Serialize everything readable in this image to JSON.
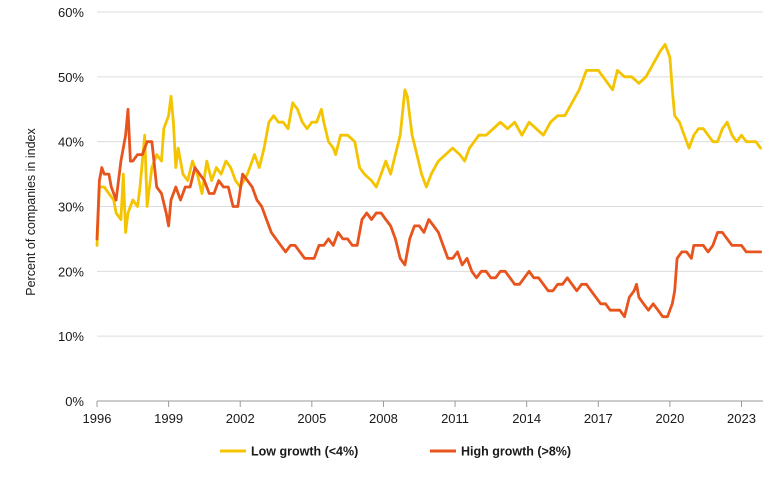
{
  "chart_data": {
    "type": "line",
    "title": "",
    "xlabel": "",
    "ylabel": "Percent of companies in index",
    "xlim": [
      1996,
      2023.9
    ],
    "ylim": [
      0,
      60
    ],
    "x_ticks": [
      1996,
      1999,
      2002,
      2005,
      2008,
      2011,
      2014,
      2017,
      2020,
      2023
    ],
    "y_ticks": [
      0,
      10,
      20,
      30,
      40,
      50,
      60
    ],
    "y_tick_labels": [
      "0%",
      "10%",
      "20%",
      "30%",
      "40%",
      "50%",
      "60%"
    ],
    "grid": "horizontal",
    "legend": "bottom",
    "series": [
      {
        "name": "Low growth (<4%)",
        "color": "#f5c400",
        "points": [
          [
            1996.0,
            24
          ],
          [
            1996.1,
            33
          ],
          [
            1996.3,
            33
          ],
          [
            1996.5,
            32
          ],
          [
            1996.7,
            31
          ],
          [
            1996.8,
            29
          ],
          [
            1997.0,
            28
          ],
          [
            1997.1,
            35
          ],
          [
            1997.2,
            26
          ],
          [
            1997.3,
            29
          ],
          [
            1997.5,
            31
          ],
          [
            1997.7,
            30
          ],
          [
            1997.8,
            33
          ],
          [
            1998.0,
            41
          ],
          [
            1998.1,
            30
          ],
          [
            1998.3,
            36
          ],
          [
            1998.5,
            38
          ],
          [
            1998.7,
            37
          ],
          [
            1998.8,
            42
          ],
          [
            1999.0,
            44
          ],
          [
            1999.1,
            47
          ],
          [
            1999.2,
            43
          ],
          [
            1999.3,
            36
          ],
          [
            1999.4,
            39
          ],
          [
            1999.6,
            35
          ],
          [
            1999.8,
            34
          ],
          [
            2000.0,
            37
          ],
          [
            2000.2,
            35
          ],
          [
            2000.4,
            32
          ],
          [
            2000.6,
            37
          ],
          [
            2000.8,
            34
          ],
          [
            2001.0,
            36
          ],
          [
            2001.2,
            35
          ],
          [
            2001.4,
            37
          ],
          [
            2001.6,
            36
          ],
          [
            2001.8,
            34
          ],
          [
            2002.0,
            33
          ],
          [
            2002.3,
            35
          ],
          [
            2002.6,
            38
          ],
          [
            2002.8,
            36
          ],
          [
            2003.0,
            39
          ],
          [
            2003.2,
            43
          ],
          [
            2003.4,
            44
          ],
          [
            2003.6,
            43
          ],
          [
            2003.8,
            43
          ],
          [
            2004.0,
            42
          ],
          [
            2004.2,
            46
          ],
          [
            2004.4,
            45
          ],
          [
            2004.6,
            43
          ],
          [
            2004.8,
            42
          ],
          [
            2005.0,
            43
          ],
          [
            2005.2,
            43
          ],
          [
            2005.4,
            45
          ],
          [
            2005.5,
            43
          ],
          [
            2005.7,
            40
          ],
          [
            2005.9,
            39
          ],
          [
            2006.0,
            38
          ],
          [
            2006.2,
            41
          ],
          [
            2006.5,
            41
          ],
          [
            2006.8,
            40
          ],
          [
            2007.0,
            36
          ],
          [
            2007.2,
            35
          ],
          [
            2007.5,
            34
          ],
          [
            2007.7,
            33
          ],
          [
            2007.9,
            35
          ],
          [
            2008.1,
            37
          ],
          [
            2008.3,
            35
          ],
          [
            2008.5,
            38
          ],
          [
            2008.7,
            41
          ],
          [
            2008.9,
            48
          ],
          [
            2009.0,
            47
          ],
          [
            2009.2,
            41
          ],
          [
            2009.4,
            38
          ],
          [
            2009.6,
            35
          ],
          [
            2009.8,
            33
          ],
          [
            2010.0,
            35
          ],
          [
            2010.3,
            37
          ],
          [
            2010.6,
            38
          ],
          [
            2010.9,
            39
          ],
          [
            2011.2,
            38
          ],
          [
            2011.4,
            37
          ],
          [
            2011.6,
            39
          ],
          [
            2011.8,
            40
          ],
          [
            2012.0,
            41
          ],
          [
            2012.3,
            41
          ],
          [
            2012.6,
            42
          ],
          [
            2012.9,
            43
          ],
          [
            2013.2,
            42
          ],
          [
            2013.5,
            43
          ],
          [
            2013.8,
            41
          ],
          [
            2014.1,
            43
          ],
          [
            2014.4,
            42
          ],
          [
            2014.7,
            41
          ],
          [
            2015.0,
            43
          ],
          [
            2015.3,
            44
          ],
          [
            2015.6,
            44
          ],
          [
            2015.9,
            46
          ],
          [
            2016.2,
            48
          ],
          [
            2016.5,
            51
          ],
          [
            2016.8,
            51
          ],
          [
            2017.0,
            51
          ],
          [
            2017.2,
            50
          ],
          [
            2017.4,
            49
          ],
          [
            2017.6,
            48
          ],
          [
            2017.8,
            51
          ],
          [
            2018.1,
            50
          ],
          [
            2018.4,
            50
          ],
          [
            2018.7,
            49
          ],
          [
            2019.0,
            50
          ],
          [
            2019.3,
            52
          ],
          [
            2019.6,
            54
          ],
          [
            2019.8,
            55
          ],
          [
            2020.0,
            53
          ],
          [
            2020.1,
            48
          ],
          [
            2020.2,
            44
          ],
          [
            2020.4,
            43
          ],
          [
            2020.6,
            41
          ],
          [
            2020.8,
            39
          ],
          [
            2021.0,
            41
          ],
          [
            2021.2,
            42
          ],
          [
            2021.4,
            42
          ],
          [
            2021.6,
            41
          ],
          [
            2021.8,
            40
          ],
          [
            2022.0,
            40
          ],
          [
            2022.2,
            42
          ],
          [
            2022.4,
            43
          ],
          [
            2022.6,
            41
          ],
          [
            2022.8,
            40
          ],
          [
            2023.0,
            41
          ],
          [
            2023.2,
            40
          ],
          [
            2023.4,
            40
          ],
          [
            2023.6,
            40
          ],
          [
            2023.8,
            39
          ]
        ]
      },
      {
        "name": "High growth (>8%)",
        "color": "#e8541d",
        "points": [
          [
            1996.0,
            25
          ],
          [
            1996.1,
            34
          ],
          [
            1996.2,
            36
          ],
          [
            1996.3,
            35
          ],
          [
            1996.5,
            35
          ],
          [
            1996.6,
            33
          ],
          [
            1996.8,
            31
          ],
          [
            1997.0,
            37
          ],
          [
            1997.1,
            39
          ],
          [
            1997.2,
            41
          ],
          [
            1997.3,
            45
          ],
          [
            1997.4,
            37
          ],
          [
            1997.5,
            37
          ],
          [
            1997.7,
            38
          ],
          [
            1997.9,
            38
          ],
          [
            1998.1,
            40
          ],
          [
            1998.3,
            40
          ],
          [
            1998.5,
            33
          ],
          [
            1998.7,
            32
          ],
          [
            1998.9,
            29
          ],
          [
            1999.0,
            27
          ],
          [
            1999.1,
            31
          ],
          [
            1999.3,
            33
          ],
          [
            1999.5,
            31
          ],
          [
            1999.7,
            33
          ],
          [
            1999.9,
            33
          ],
          [
            2000.1,
            36
          ],
          [
            2000.3,
            35
          ],
          [
            2000.5,
            34
          ],
          [
            2000.7,
            32
          ],
          [
            2000.9,
            32
          ],
          [
            2001.1,
            34
          ],
          [
            2001.3,
            33
          ],
          [
            2001.5,
            33
          ],
          [
            2001.7,
            30
          ],
          [
            2001.9,
            30
          ],
          [
            2002.1,
            35
          ],
          [
            2002.3,
            34
          ],
          [
            2002.5,
            33
          ],
          [
            2002.7,
            31
          ],
          [
            2002.9,
            30
          ],
          [
            2003.1,
            28
          ],
          [
            2003.3,
            26
          ],
          [
            2003.5,
            25
          ],
          [
            2003.7,
            24
          ],
          [
            2003.9,
            23
          ],
          [
            2004.1,
            24
          ],
          [
            2004.3,
            24
          ],
          [
            2004.5,
            23
          ],
          [
            2004.7,
            22
          ],
          [
            2004.9,
            22
          ],
          [
            2005.1,
            22
          ],
          [
            2005.3,
            24
          ],
          [
            2005.5,
            24
          ],
          [
            2005.7,
            25
          ],
          [
            2005.9,
            24
          ],
          [
            2006.1,
            26
          ],
          [
            2006.3,
            25
          ],
          [
            2006.5,
            25
          ],
          [
            2006.7,
            24
          ],
          [
            2006.9,
            24
          ],
          [
            2007.0,
            26
          ],
          [
            2007.1,
            28
          ],
          [
            2007.3,
            29
          ],
          [
            2007.5,
            28
          ],
          [
            2007.7,
            29
          ],
          [
            2007.9,
            29
          ],
          [
            2008.1,
            28
          ],
          [
            2008.3,
            27
          ],
          [
            2008.5,
            25
          ],
          [
            2008.7,
            22
          ],
          [
            2008.9,
            21
          ],
          [
            2009.1,
            25
          ],
          [
            2009.3,
            27
          ],
          [
            2009.5,
            27
          ],
          [
            2009.7,
            26
          ],
          [
            2009.9,
            28
          ],
          [
            2010.1,
            27
          ],
          [
            2010.3,
            26
          ],
          [
            2010.5,
            24
          ],
          [
            2010.7,
            22
          ],
          [
            2010.9,
            22
          ],
          [
            2011.1,
            23
          ],
          [
            2011.3,
            21
          ],
          [
            2011.5,
            22
          ],
          [
            2011.7,
            20
          ],
          [
            2011.9,
            19
          ],
          [
            2012.1,
            20
          ],
          [
            2012.3,
            20
          ],
          [
            2012.5,
            19
          ],
          [
            2012.7,
            19
          ],
          [
            2012.9,
            20
          ],
          [
            2013.1,
            20
          ],
          [
            2013.3,
            19
          ],
          [
            2013.5,
            18
          ],
          [
            2013.7,
            18
          ],
          [
            2013.9,
            19
          ],
          [
            2014.1,
            20
          ],
          [
            2014.3,
            19
          ],
          [
            2014.5,
            19
          ],
          [
            2014.7,
            18
          ],
          [
            2014.9,
            17
          ],
          [
            2015.1,
            17
          ],
          [
            2015.3,
            18
          ],
          [
            2015.5,
            18
          ],
          [
            2015.7,
            19
          ],
          [
            2015.9,
            18
          ],
          [
            2016.1,
            17
          ],
          [
            2016.3,
            18
          ],
          [
            2016.5,
            18
          ],
          [
            2016.7,
            17
          ],
          [
            2016.9,
            16
          ],
          [
            2017.1,
            15
          ],
          [
            2017.3,
            15
          ],
          [
            2017.5,
            14
          ],
          [
            2017.7,
            14
          ],
          [
            2017.9,
            14
          ],
          [
            2018.1,
            13
          ],
          [
            2018.3,
            16
          ],
          [
            2018.5,
            17
          ],
          [
            2018.6,
            18
          ],
          [
            2018.7,
            16
          ],
          [
            2018.9,
            15
          ],
          [
            2019.1,
            14
          ],
          [
            2019.3,
            15
          ],
          [
            2019.5,
            14
          ],
          [
            2019.7,
            13
          ],
          [
            2019.9,
            13
          ],
          [
            2020.0,
            14
          ],
          [
            2020.1,
            15
          ],
          [
            2020.2,
            17
          ],
          [
            2020.3,
            22
          ],
          [
            2020.5,
            23
          ],
          [
            2020.7,
            23
          ],
          [
            2020.9,
            22
          ],
          [
            2021.0,
            24
          ],
          [
            2021.2,
            24
          ],
          [
            2021.4,
            24
          ],
          [
            2021.6,
            23
          ],
          [
            2021.8,
            24
          ],
          [
            2022.0,
            26
          ],
          [
            2022.2,
            26
          ],
          [
            2022.4,
            25
          ],
          [
            2022.6,
            24
          ],
          [
            2022.8,
            24
          ],
          [
            2023.0,
            24
          ],
          [
            2023.2,
            23
          ],
          [
            2023.4,
            23
          ],
          [
            2023.6,
            23
          ],
          [
            2023.8,
            23
          ]
        ]
      }
    ]
  }
}
